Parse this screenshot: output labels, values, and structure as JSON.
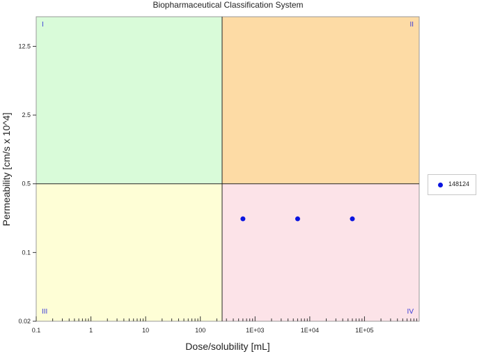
{
  "chart_data": {
    "type": "scatter",
    "title": "Biopharmaceutical Classification System",
    "xlabel": "Dose/solubility [mL]",
    "ylabel": "Permeability [cm/s x 10^4]",
    "x_scale": "log",
    "y_scale": "log",
    "xlim": [
      0.1,
      1000000
    ],
    "ylim": [
      0.02,
      25
    ],
    "x_ticks": [
      {
        "value": 0.1,
        "label": "0.1"
      },
      {
        "value": 1,
        "label": "1"
      },
      {
        "value": 10,
        "label": "10"
      },
      {
        "value": 100,
        "label": "100"
      },
      {
        "value": 1000,
        "label": "1E+03"
      },
      {
        "value": 10000,
        "label": "1E+04"
      },
      {
        "value": 100000,
        "label": "1E+05"
      }
    ],
    "y_ticks": [
      {
        "value": 0.02,
        "label": "0.02"
      },
      {
        "value": 0.1,
        "label": "0.1"
      },
      {
        "value": 0.5,
        "label": "0.5"
      },
      {
        "value": 2.5,
        "label": "2.5"
      },
      {
        "value": 12.5,
        "label": "12.5"
      }
    ],
    "regions": [
      {
        "label": "I",
        "color": "#d9fbd9",
        "corner": "top-left"
      },
      {
        "label": "II",
        "color": "#fddba5",
        "corner": "top-right"
      },
      {
        "label": "III",
        "color": "#fefed6",
        "corner": "bottom-left"
      },
      {
        "label": "IV",
        "color": "#fce3e8",
        "corner": "bottom-right"
      }
    ],
    "boundaries": {
      "x": 250,
      "y": 0.5
    },
    "series": [
      {
        "name": "148124",
        "color": "#0a14e0",
        "x": [
          600,
          6000,
          60000
        ],
        "y": [
          0.22,
          0.22,
          0.22
        ]
      }
    ],
    "legend_position": "right",
    "grid": false
  }
}
